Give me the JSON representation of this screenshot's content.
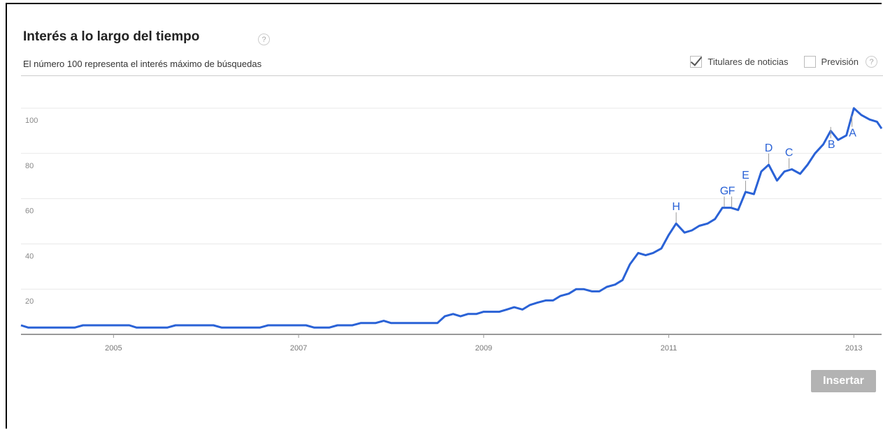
{
  "header": {
    "title": "Interés a lo largo del tiempo",
    "help_icon": "?",
    "subtitle": "El número 100 representa el interés máximo de búsquedas"
  },
  "controls": {
    "news_headlines": {
      "label": "Titulares de noticias",
      "checked": true
    },
    "forecast": {
      "label": "Previsión",
      "checked": false
    },
    "help_icon": "?"
  },
  "insert_button": {
    "label": "Insertar"
  },
  "colors": {
    "line": "#2a62d6",
    "grid": "#e8e8e8",
    "axis": "#666666",
    "button": "#b3b3b3"
  },
  "chart_data": {
    "type": "line",
    "title": "Interés a lo largo del tiempo",
    "ylim": [
      0,
      100
    ],
    "yticks": [
      20,
      40,
      60,
      80,
      100
    ],
    "xlim": [
      2004.0,
      2013.3
    ],
    "xticks": [
      {
        "value": 2005,
        "label": "2005"
      },
      {
        "value": 2007,
        "label": "2007"
      },
      {
        "value": 2009,
        "label": "2009"
      },
      {
        "value": 2011,
        "label": "2011"
      },
      {
        "value": 2013,
        "label": "2013"
      }
    ],
    "grid": true,
    "series": [
      {
        "values": [
          {
            "x": 2004.0,
            "y": 4
          },
          {
            "x": 2004.08,
            "y": 3
          },
          {
            "x": 2004.25,
            "y": 3
          },
          {
            "x": 2004.5,
            "y": 3
          },
          {
            "x": 2004.58,
            "y": 3
          },
          {
            "x": 2004.67,
            "y": 4
          },
          {
            "x": 2005.0,
            "y": 4
          },
          {
            "x": 2005.17,
            "y": 4
          },
          {
            "x": 2005.25,
            "y": 3
          },
          {
            "x": 2005.58,
            "y": 3
          },
          {
            "x": 2005.67,
            "y": 4
          },
          {
            "x": 2006.0,
            "y": 4
          },
          {
            "x": 2006.08,
            "y": 4
          },
          {
            "x": 2006.17,
            "y": 3
          },
          {
            "x": 2006.58,
            "y": 3
          },
          {
            "x": 2006.67,
            "y": 4
          },
          {
            "x": 2007.0,
            "y": 4
          },
          {
            "x": 2007.08,
            "y": 4
          },
          {
            "x": 2007.17,
            "y": 3
          },
          {
            "x": 2007.33,
            "y": 3
          },
          {
            "x": 2007.42,
            "y": 4
          },
          {
            "x": 2007.58,
            "y": 4
          },
          {
            "x": 2007.67,
            "y": 5
          },
          {
            "x": 2007.83,
            "y": 5
          },
          {
            "x": 2007.92,
            "y": 6
          },
          {
            "x": 2008.0,
            "y": 5
          },
          {
            "x": 2008.25,
            "y": 5
          },
          {
            "x": 2008.5,
            "y": 5
          },
          {
            "x": 2008.58,
            "y": 8
          },
          {
            "x": 2008.67,
            "y": 9
          },
          {
            "x": 2008.75,
            "y": 8
          },
          {
            "x": 2008.83,
            "y": 9
          },
          {
            "x": 2008.92,
            "y": 9
          },
          {
            "x": 2009.0,
            "y": 10
          },
          {
            "x": 2009.17,
            "y": 10
          },
          {
            "x": 2009.25,
            "y": 11
          },
          {
            "x": 2009.33,
            "y": 12
          },
          {
            "x": 2009.42,
            "y": 11
          },
          {
            "x": 2009.5,
            "y": 13
          },
          {
            "x": 2009.58,
            "y": 14
          },
          {
            "x": 2009.67,
            "y": 15
          },
          {
            "x": 2009.75,
            "y": 15
          },
          {
            "x": 2009.83,
            "y": 17
          },
          {
            "x": 2009.92,
            "y": 18
          },
          {
            "x": 2010.0,
            "y": 20
          },
          {
            "x": 2010.08,
            "y": 20
          },
          {
            "x": 2010.17,
            "y": 19
          },
          {
            "x": 2010.25,
            "y": 19
          },
          {
            "x": 2010.33,
            "y": 21
          },
          {
            "x": 2010.42,
            "y": 22
          },
          {
            "x": 2010.5,
            "y": 24
          },
          {
            "x": 2010.58,
            "y": 31
          },
          {
            "x": 2010.67,
            "y": 36
          },
          {
            "x": 2010.75,
            "y": 35
          },
          {
            "x": 2010.83,
            "y": 36
          },
          {
            "x": 2010.92,
            "y": 38
          },
          {
            "x": 2011.0,
            "y": 44
          },
          {
            "x": 2011.08,
            "y": 49
          },
          {
            "x": 2011.17,
            "y": 45
          },
          {
            "x": 2011.25,
            "y": 46
          },
          {
            "x": 2011.33,
            "y": 48
          },
          {
            "x": 2011.42,
            "y": 49
          },
          {
            "x": 2011.5,
            "y": 51
          },
          {
            "x": 2011.58,
            "y": 56
          },
          {
            "x": 2011.67,
            "y": 56
          },
          {
            "x": 2011.75,
            "y": 55
          },
          {
            "x": 2011.83,
            "y": 63
          },
          {
            "x": 2011.92,
            "y": 62
          },
          {
            "x": 2012.0,
            "y": 72
          },
          {
            "x": 2012.08,
            "y": 75
          },
          {
            "x": 2012.17,
            "y": 68
          },
          {
            "x": 2012.25,
            "y": 72
          },
          {
            "x": 2012.33,
            "y": 73
          },
          {
            "x": 2012.42,
            "y": 71
          },
          {
            "x": 2012.5,
            "y": 75
          },
          {
            "x": 2012.58,
            "y": 80
          },
          {
            "x": 2012.67,
            "y": 84
          },
          {
            "x": 2012.75,
            "y": 90
          },
          {
            "x": 2012.83,
            "y": 86
          },
          {
            "x": 2012.92,
            "y": 88
          },
          {
            "x": 2013.0,
            "y": 100
          },
          {
            "x": 2013.08,
            "y": 97
          },
          {
            "x": 2013.17,
            "y": 95
          },
          {
            "x": 2013.25,
            "y": 94
          },
          {
            "x": 2013.3,
            "y": 91
          }
        ]
      }
    ],
    "annotations": [
      {
        "label": "A",
        "x": 2012.98,
        "y": 93,
        "pos": "below"
      },
      {
        "label": "B",
        "x": 2012.75,
        "y": 88,
        "pos": "below"
      },
      {
        "label": "C",
        "x": 2012.3,
        "y": 73,
        "pos": "above"
      },
      {
        "label": "D",
        "x": 2012.08,
        "y": 75,
        "pos": "above"
      },
      {
        "label": "E",
        "x": 2011.83,
        "y": 63,
        "pos": "above"
      },
      {
        "label": "G",
        "x": 2011.6,
        "y": 56,
        "pos": "above"
      },
      {
        "label": "F",
        "x": 2011.68,
        "y": 56,
        "pos": "above"
      },
      {
        "label": "H",
        "x": 2011.08,
        "y": 49,
        "pos": "above"
      }
    ]
  }
}
